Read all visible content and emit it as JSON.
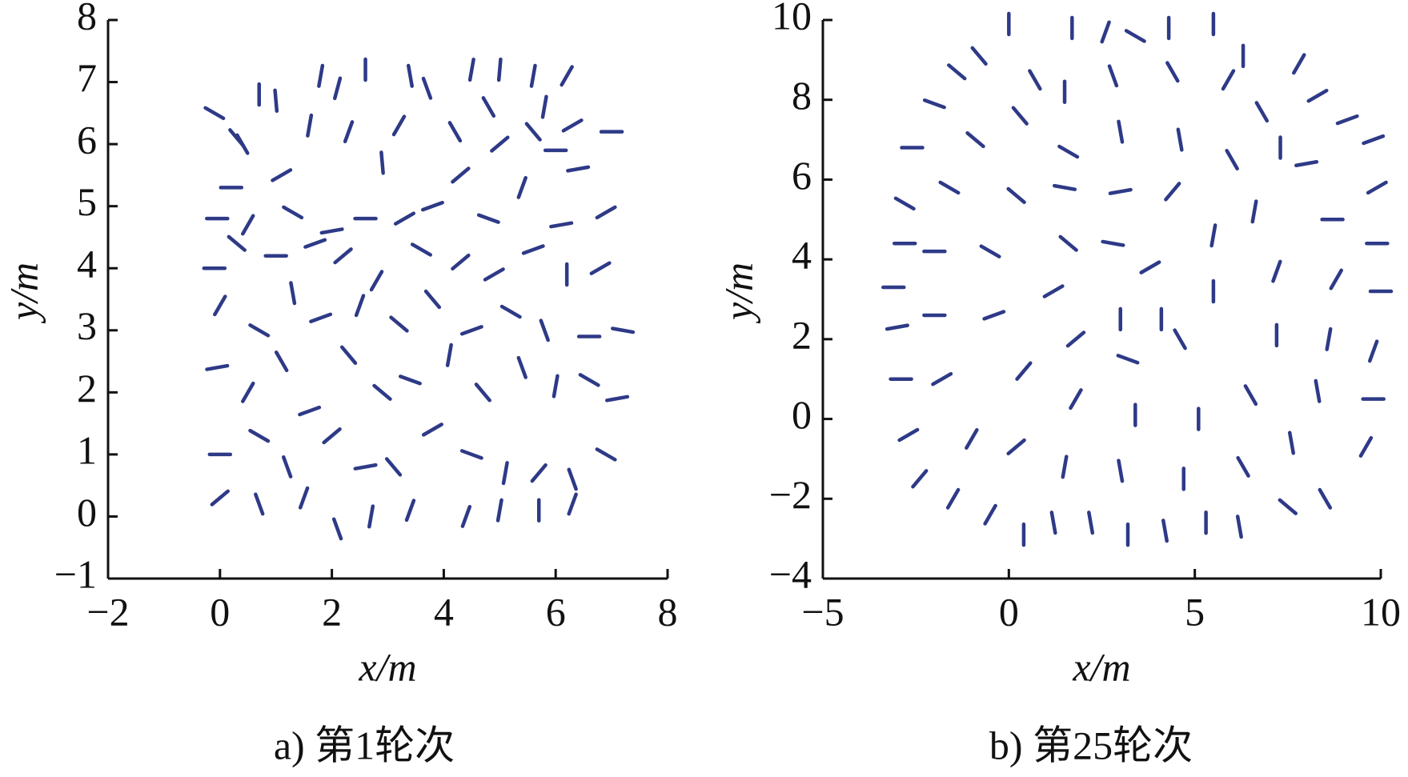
{
  "chart_data": [
    {
      "type": "quiver",
      "caption": "a) 第1轮次",
      "xlabel": "x/m",
      "ylabel": "y/m",
      "color": "#2e3a87",
      "xlim": [
        -2,
        8
      ],
      "ylim": [
        -1,
        8
      ],
      "xticks": [
        {
          "value": -2,
          "label": "−2"
        },
        0,
        2,
        4,
        6,
        8
      ],
      "yticks": [
        {
          "value": -1,
          "label": "−1"
        },
        0,
        1,
        2,
        3,
        4,
        5,
        6,
        7,
        8
      ],
      "x": [
        -0.1,
        0.3,
        0.4,
        0.7,
        1.0,
        1.8,
        2.1,
        2.6,
        3.4,
        3.7,
        4.5,
        5.0,
        5.6,
        6.2,
        4.8,
        5.8,
        6.3,
        7.0,
        0.2,
        1.1,
        1.6,
        2.3,
        2.9,
        3.2,
        4.2,
        5.0,
        5.6,
        6.0,
        6.4,
        -0.05,
        0.5,
        1.3,
        2.0,
        2.6,
        3.3,
        3.8,
        4.3,
        4.8,
        5.4,
        6.1,
        6.9,
        -0.1,
        0.3,
        1.0,
        1.7,
        2.2,
        2.8,
        3.6,
        4.3,
        4.9,
        5.6,
        6.2,
        6.8,
        0.0,
        0.7,
        1.3,
        1.8,
        2.5,
        3.2,
        3.8,
        4.5,
        5.2,
        5.8,
        6.6,
        7.2,
        -0.05,
        0.5,
        1.1,
        1.6,
        2.3,
        2.9,
        3.4,
        4.1,
        4.7,
        5.4,
        6.0,
        6.6,
        7.1,
        0.0,
        0.7,
        1.2,
        2.0,
        2.6,
        3.1,
        3.8,
        4.5,
        5.1,
        5.7,
        6.3,
        6.9,
        0.0,
        0.7,
        1.5,
        2.1,
        2.7,
        3.4,
        4.4,
        5.0,
        5.7,
        6.3
      ],
      "y": [
        6.5,
        6.1,
        6.0,
        6.8,
        6.7,
        7.1,
        6.9,
        7.2,
        7.1,
        6.9,
        7.2,
        7.2,
        7.1,
        7.1,
        6.6,
        6.6,
        6.3,
        6.2,
        5.3,
        5.5,
        6.3,
        6.2,
        5.7,
        6.3,
        6.2,
        6.0,
        6.2,
        5.9,
        5.6,
        4.8,
        4.7,
        4.9,
        4.6,
        4.8,
        4.8,
        5.0,
        5.5,
        4.8,
        5.3,
        4.7,
        4.9,
        4.0,
        4.4,
        4.2,
        4.4,
        4.2,
        3.8,
        4.3,
        4.1,
        3.9,
        4.3,
        3.9,
        4.0,
        3.4,
        3.0,
        3.6,
        3.2,
        3.4,
        3.1,
        3.5,
        3.0,
        3.3,
        3.0,
        2.9,
        3.0,
        2.4,
        2.0,
        2.5,
        1.7,
        2.6,
        2.0,
        2.2,
        2.6,
        2.0,
        2.4,
        2.1,
        2.2,
        1.9,
        1.0,
        1.3,
        0.8,
        1.3,
        0.8,
        0.8,
        1.4,
        1.0,
        0.7,
        0.7,
        0.6,
        1.0,
        0.3,
        0.2,
        0.3,
        -0.2,
        0.0,
        0.1,
        0.0,
        0.1,
        0.1,
        0.2
      ],
      "angle": [
        150,
        130,
        120,
        90,
        95,
        80,
        75,
        90,
        100,
        110,
        80,
        85,
        80,
        60,
        120,
        80,
        30,
        0,
        0,
        30,
        80,
        70,
        95,
        60,
        120,
        40,
        130,
        0,
        10,
        0,
        60,
        150,
        10,
        0,
        30,
        20,
        40,
        160,
        70,
        10,
        30,
        0,
        140,
        0,
        20,
        40,
        60,
        150,
        40,
        30,
        20,
        90,
        30,
        60,
        150,
        100,
        20,
        70,
        140,
        130,
        20,
        150,
        110,
        0,
        170,
        10,
        60,
        120,
        20,
        130,
        140,
        160,
        80,
        130,
        110,
        80,
        150,
        10,
        0,
        150,
        110,
        40,
        10,
        130,
        30,
        160,
        80,
        50,
        110,
        150,
        40,
        110,
        70,
        110,
        80,
        70,
        70,
        80,
        90,
        70
      ]
    },
    {
      "type": "quiver",
      "caption": "b) 第25轮次",
      "xlabel": "x/m",
      "ylabel": "y/m",
      "color": "#2e3a87",
      "xlim": [
        -5,
        10
      ],
      "ylim": [
        -4,
        10
      ],
      "xticks": [
        {
          "value": -5,
          "label": "−5"
        },
        0,
        5,
        10
      ],
      "yticks": [
        {
          "value": -4,
          "label": "−4"
        },
        {
          "value": -2,
          "label": "−2"
        },
        0,
        2,
        4,
        6,
        8,
        10
      ],
      "x": [
        0,
        1.7,
        2.6,
        3.4,
        4.3,
        5.5,
        6.3,
        7.8,
        8.3,
        9.1,
        9.8,
        9.9,
        9.9,
        10.0,
        9.8,
        9.8,
        9.6,
        8.5,
        7.5,
        6.2,
        5.3,
        4.2,
        3.2,
        2.2,
        1.2,
        0.4,
        -0.5,
        -1.5,
        -2.4,
        -2.7,
        -2.9,
        -3.0,
        -3.1,
        -2.8,
        -2.8,
        -2.6,
        -2.0,
        -1.4,
        -0.8,
        0.7,
        1.5,
        2.8,
        4.4,
        5.9,
        6.8,
        7.3,
        8.0,
        8.7,
        8.8,
        8.6,
        8.3,
        7.6,
        6.3,
        4.7,
        3.0,
        1.5,
        0.2,
        -1.0,
        -1.8,
        -2.0,
        -2.0,
        -1.6,
        -0.9,
        0.3,
        1.6,
        3.0,
        4.6,
        6.0,
        6.6,
        7.2,
        7.2,
        6.5,
        5.1,
        3.4,
        1.8,
        0.4,
        -0.4,
        -0.5,
        0.2,
        1.5,
        3.0,
        4.4,
        5.5,
        5.5,
        4.6,
        3.2,
        1.8,
        1.2,
        1.6,
        2.8,
        3.8,
        4.1,
        3.0
      ],
      "y": [
        9.9,
        9.8,
        9.7,
        9.6,
        9.8,
        9.9,
        9.1,
        8.9,
        8.1,
        7.5,
        7.0,
        5.8,
        4.4,
        3.2,
        1.7,
        0.5,
        -0.7,
        -2.0,
        -2.2,
        -2.7,
        -2.6,
        -2.8,
        -2.9,
        -2.6,
        -2.6,
        -2.9,
        -2.4,
        -2.0,
        -1.5,
        -0.4,
        1.0,
        2.3,
        3.3,
        4.4,
        5.4,
        6.8,
        7.9,
        8.7,
        9.1,
        8.5,
        8.2,
        8.6,
        8.7,
        8.5,
        7.7,
        6.8,
        6.4,
        5.0,
        3.5,
        2.0,
        0.7,
        -0.6,
        -1.2,
        -1.5,
        -1.3,
        -1.2,
        -0.7,
        -0.5,
        1.0,
        2.6,
        4.2,
        5.8,
        7.0,
        7.6,
        6.7,
        7.2,
        7.0,
        6.5,
        5.2,
        3.7,
        2.1,
        0.6,
        0.0,
        0.1,
        0.5,
        1.2,
        2.6,
        4.2,
        5.6,
        5.8,
        5.7,
        5.7,
        4.6,
        3.2,
        2.0,
        1.5,
        2.0,
        3.2,
        4.4,
        4.4,
        3.8,
        2.5,
        2.5
      ],
      "angle": [
        90,
        90,
        70,
        150,
        90,
        90,
        90,
        60,
        30,
        20,
        20,
        30,
        0,
        0,
        70,
        0,
        60,
        120,
        140,
        100,
        90,
        100,
        90,
        100,
        100,
        90,
        60,
        60,
        50,
        30,
        0,
        10,
        0,
        0,
        150,
        0,
        160,
        140,
        130,
        120,
        90,
        110,
        120,
        60,
        120,
        90,
        10,
        0,
        60,
        80,
        100,
        100,
        120,
        90,
        100,
        80,
        40,
        60,
        30,
        0,
        0,
        150,
        140,
        130,
        150,
        100,
        100,
        120,
        80,
        70,
        90,
        120,
        90,
        90,
        60,
        50,
        20,
        150,
        140,
        170,
        10,
        50,
        80,
        90,
        120,
        160,
        40,
        30,
        140,
        170,
        30,
        90,
        90
      ]
    }
  ]
}
